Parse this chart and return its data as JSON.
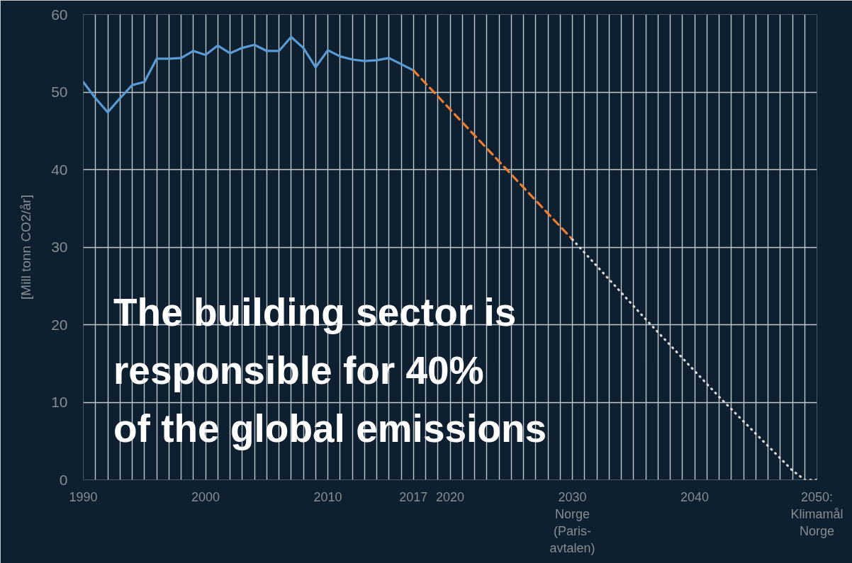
{
  "chart_data": {
    "type": "line",
    "ylabel": "[Mill tonn CO2/år]",
    "series": [
      {
        "color": "#5b9bd5",
        "line_style": "solid",
        "x": [
          1990,
          1991,
          1992,
          1993,
          1994,
          1995,
          1996,
          1997,
          1998,
          1999,
          2000,
          2001,
          2002,
          2003,
          2004,
          2005,
          2006,
          2007,
          2008,
          2009,
          2010,
          2011,
          2012,
          2013,
          2014,
          2015,
          2016,
          2017
        ],
        "values": [
          51.3,
          49.2,
          47.4,
          49.2,
          50.9,
          51.3,
          54.3,
          54.3,
          54.4,
          55.3,
          54.8,
          56.0,
          55.0,
          55.7,
          56.1,
          55.3,
          55.3,
          57.1,
          55.7,
          53.2,
          55.4,
          54.6,
          54.2,
          54.0,
          54.1,
          54.4,
          53.6,
          52.8
        ]
      },
      {
        "color": "#ed7d31",
        "line_style": "dashed",
        "x": [
          2017,
          2030
        ],
        "values": [
          52.8,
          31.0
        ]
      },
      {
        "color": "#d9d9d9",
        "line_style": "dotted",
        "x": [
          2030,
          2036,
          2042,
          2048,
          2049,
          2050
        ],
        "values": [
          31.0,
          20.7,
          10.7,
          1.2,
          0,
          0
        ]
      }
    ],
    "xlim": [
      1990,
      2050
    ],
    "ylim": [
      0,
      60
    ],
    "xticks": [
      1990,
      {
        "value": 1991,
        "label": null
      },
      {
        "value": 1992,
        "label": null
      },
      {
        "value": 1993,
        "label": null
      },
      {
        "value": 1994,
        "label": null
      },
      {
        "value": 1995,
        "label": null
      },
      {
        "value": 1996,
        "label": null
      },
      {
        "value": 1997,
        "label": null
      },
      {
        "value": 1998,
        "label": null
      },
      {
        "value": 1999,
        "label": null
      },
      2000,
      {
        "value": 2001,
        "label": null
      },
      {
        "value": 2002,
        "label": null
      },
      {
        "value": 2003,
        "label": null
      },
      {
        "value": 2004,
        "label": null
      },
      {
        "value": 2005,
        "label": null
      },
      {
        "value": 2006,
        "label": null
      },
      {
        "value": 2007,
        "label": null
      },
      {
        "value": 2008,
        "label": null
      },
      {
        "value": 2009,
        "label": null
      },
      2010,
      {
        "value": 2011,
        "label": null
      },
      {
        "value": 2012,
        "label": null
      },
      {
        "value": 2013,
        "label": null
      },
      {
        "value": 2014,
        "label": null
      },
      {
        "value": 2015,
        "label": null
      },
      {
        "value": 2016,
        "label": null
      },
      2017,
      {
        "value": 2018,
        "label": null
      },
      {
        "value": 2019,
        "label": null
      },
      2020,
      {
        "value": 2021,
        "label": null
      },
      {
        "value": 2022,
        "label": null
      },
      {
        "value": 2023,
        "label": null
      },
      {
        "value": 2024,
        "label": null
      },
      {
        "value": 2025,
        "label": null
      },
      {
        "value": 2026,
        "label": null
      },
      {
        "value": 2027,
        "label": null
      },
      {
        "value": 2028,
        "label": null
      },
      {
        "value": 2029,
        "label": null
      },
      {
        "value": 2030,
        "label": "2030\nNorge\n(Paris-\navtalen)"
      },
      {
        "value": 2031,
        "label": null
      },
      {
        "value": 2032,
        "label": null
      },
      {
        "value": 2033,
        "label": null
      },
      {
        "value": 2034,
        "label": null
      },
      {
        "value": 2035,
        "label": null
      },
      {
        "value": 2036,
        "label": null
      },
      {
        "value": 2037,
        "label": null
      },
      {
        "value": 2038,
        "label": null
      },
      {
        "value": 2039,
        "label": null
      },
      2040,
      {
        "value": 2041,
        "label": null
      },
      {
        "value": 2042,
        "label": null
      },
      {
        "value": 2043,
        "label": null
      },
      {
        "value": 2044,
        "label": null
      },
      {
        "value": 2045,
        "label": null
      },
      {
        "value": 2046,
        "label": null
      },
      {
        "value": 2047,
        "label": null
      },
      {
        "value": 2048,
        "label": null
      },
      {
        "value": 2049,
        "label": null
      },
      {
        "value": 2050,
        "label": "2050:\nKlimamål\nNorge"
      }
    ],
    "yticks": [
      0,
      10,
      20,
      30,
      40,
      50,
      60
    ],
    "grid": true,
    "annotations": [
      "The building sector is\nresponsible for  40%\nof the global emissions"
    ]
  }
}
